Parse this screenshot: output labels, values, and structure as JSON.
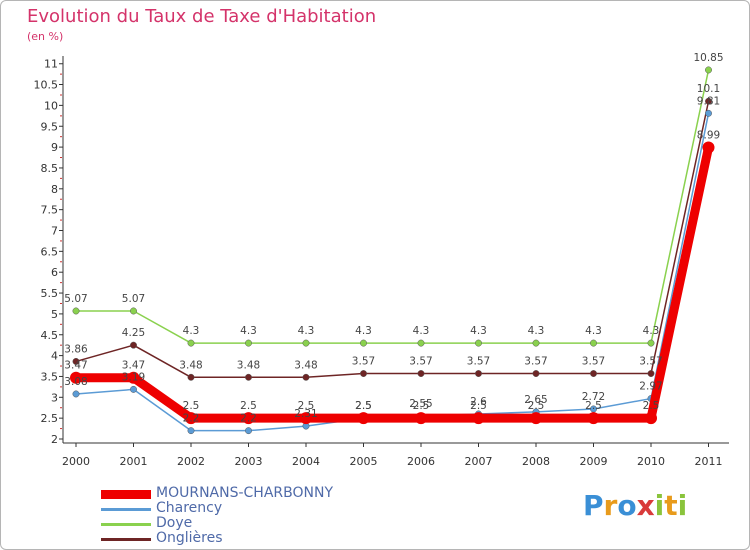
{
  "header": {
    "title": "Evolution du Taux de Taxe d'Habitation",
    "unit": "(en %)"
  },
  "chart_data": {
    "type": "line",
    "title": "Evolution du Taux de Taxe d'Habitation",
    "ylabel": "(en %)",
    "xlabel": "",
    "categories": [
      "2000",
      "2001",
      "2002",
      "2003",
      "2004",
      "2005",
      "2006",
      "2007",
      "2008",
      "2009",
      "2010",
      "2011"
    ],
    "ylim": [
      2,
      11
    ],
    "yticks": [
      "2",
      "2.5",
      "3",
      "3.5",
      "4",
      "4.5",
      "5",
      "5.5",
      "6",
      "6.5",
      "7",
      "7.5",
      "8",
      "8.5",
      "9",
      "9.5",
      "10",
      "10.5",
      "11"
    ],
    "series": [
      {
        "name": "Doye",
        "color": "#8ad14e",
        "values": [
          5.07,
          5.07,
          4.3,
          4.3,
          4.3,
          4.3,
          4.3,
          4.3,
          4.3,
          4.3,
          4.3,
          10.85
        ],
        "labels": [
          "5.07",
          "5.07",
          "4.3",
          "4.3",
          "4.3",
          "4.3",
          "4.3",
          "4.3",
          "4.3",
          "4.3",
          "4.3",
          "10.85"
        ]
      },
      {
        "name": "Onglières",
        "color": "#6e2525",
        "values": [
          3.86,
          4.25,
          3.48,
          3.48,
          3.48,
          3.57,
          3.57,
          3.57,
          3.57,
          3.57,
          3.57,
          10.1
        ],
        "labels": [
          "3.86",
          "4.25",
          "3.48",
          "3.48",
          "3.48",
          "3.57",
          "3.57",
          "3.57",
          "3.57",
          "3.57",
          "3.57",
          "10.1"
        ]
      },
      {
        "name": "Charency",
        "color": "#5b9bd5",
        "values": [
          3.08,
          3.19,
          2.2,
          2.2,
          2.31,
          2.5,
          2.55,
          2.6,
          2.65,
          2.72,
          2.97,
          9.81
        ],
        "labels": [
          "3.08",
          "3.19",
          "2.2",
          "2.2",
          "2.31",
          "2.5",
          "2.55",
          "2.6",
          "2.65",
          "2.72",
          "2.97",
          "9.81"
        ]
      },
      {
        "name": "MOURNANS-CHARBONNY",
        "color": "#ee0000",
        "values": [
          3.47,
          3.47,
          2.5,
          2.5,
          2.5,
          2.5,
          2.5,
          2.5,
          2.5,
          2.5,
          2.5,
          8.99
        ],
        "labels": [
          "3.47",
          "3.47",
          "2.5",
          "2.5",
          "2.5",
          "2.5",
          "2.5",
          "2.5",
          "2.5",
          "2.5",
          "2.5",
          "8.99"
        ]
      }
    ],
    "grid": false,
    "legend_position": "bottom-left"
  },
  "legend": [
    {
      "name": "MOURNANS-CHARBONNY",
      "color": "#ee0000"
    },
    {
      "name": "Charency",
      "color": "#5b9bd5"
    },
    {
      "name": "Doye",
      "color": "#8ad14e"
    },
    {
      "name": "Onglières",
      "color": "#6e2525"
    }
  ],
  "logo": {
    "letters": [
      "P",
      "r",
      "o",
      "x",
      "i",
      "t",
      "i"
    ],
    "colors": [
      "#3a8fd6",
      "#e89b1c",
      "#3a8fd6",
      "#d93a3a",
      "#8ac43c",
      "#e89b1c",
      "#8ac43c"
    ]
  }
}
